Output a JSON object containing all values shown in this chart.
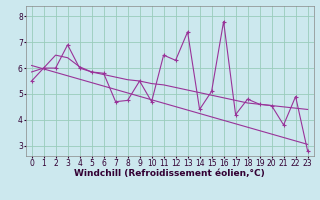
{
  "xlabel": "Windchill (Refroidissement éolien,°C)",
  "bg_color": "#cce8ee",
  "line_color": "#993399",
  "grid_color": "#99ccbb",
  "xlim": [
    -0.5,
    23.5
  ],
  "ylim": [
    2.6,
    8.4
  ],
  "xticks": [
    0,
    1,
    2,
    3,
    4,
    5,
    6,
    7,
    8,
    9,
    10,
    11,
    12,
    13,
    14,
    15,
    16,
    17,
    18,
    19,
    20,
    21,
    22,
    23
  ],
  "yticks": [
    3,
    4,
    5,
    6,
    7,
    8
  ],
  "series1_x": [
    0,
    1,
    2,
    3,
    4,
    5,
    6,
    7,
    8,
    9,
    10,
    11,
    12,
    13,
    14,
    15,
    16,
    17,
    18,
    19,
    20,
    21,
    22,
    23
  ],
  "series1_y": [
    5.5,
    6.0,
    6.0,
    6.9,
    6.0,
    5.85,
    5.8,
    4.7,
    4.75,
    5.5,
    4.7,
    6.5,
    6.3,
    7.4,
    4.4,
    5.1,
    7.8,
    4.2,
    4.8,
    4.6,
    4.55,
    3.8,
    4.9,
    2.8
  ],
  "smooth_x": [
    0,
    1,
    2,
    3,
    4,
    5,
    6,
    7,
    8,
    9,
    10,
    11,
    12,
    13,
    14,
    15,
    16,
    17,
    18,
    19,
    20,
    21,
    22,
    23
  ],
  "smooth_y": [
    5.85,
    6.0,
    6.5,
    6.4,
    6.05,
    5.85,
    5.75,
    5.65,
    5.55,
    5.5,
    5.4,
    5.35,
    5.25,
    5.15,
    5.05,
    4.95,
    4.85,
    4.75,
    4.65,
    4.6,
    4.55,
    4.5,
    4.45,
    4.4
  ],
  "trend_x": [
    0,
    23
  ],
  "trend_y": [
    6.1,
    3.05
  ],
  "xlabel_fontsize": 6.5,
  "tick_fontsize": 5.5,
  "marker": "+"
}
